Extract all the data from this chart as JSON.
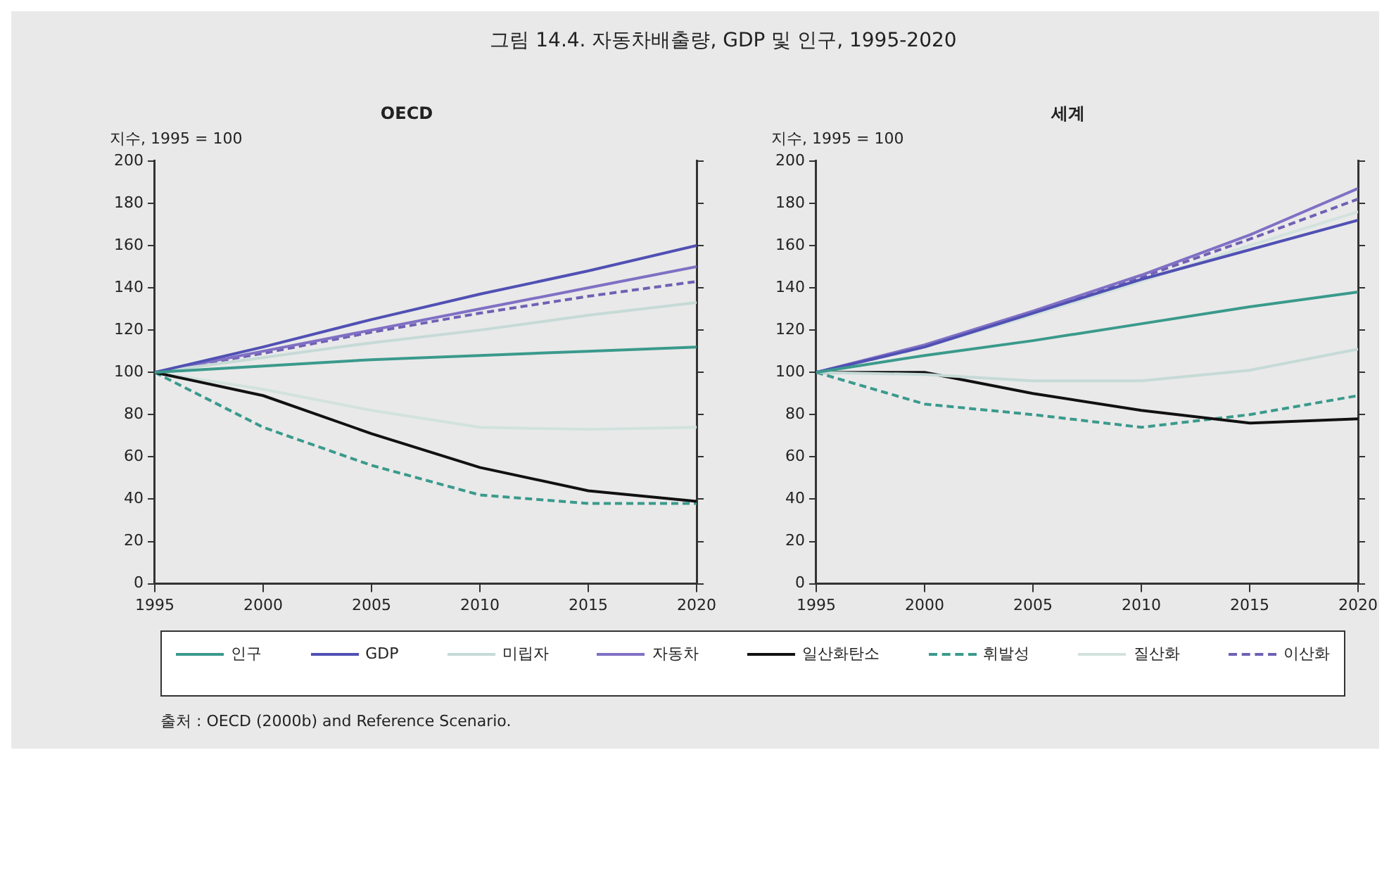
{
  "chart_data": [
    {
      "type": "line",
      "title": "그림 14.4. 자동차배출량, GDP 및 인구, 1995-2020",
      "subtitle": "OECD",
      "ylabel": "지수, 1995 = 100",
      "annotations": [
        "출처 : OECD (2000b) and Reference Scenario."
      ],
      "legend": "bottom",
      "grid": false,
      "marker": "none",
      "x": [
        1995,
        2000,
        2005,
        2010,
        2015,
        2020
      ],
      "xlim": [
        1995,
        2020
      ],
      "xticks": [
        1995,
        2000,
        2005,
        2010,
        2015,
        2020
      ],
      "ylim": [
        0,
        200
      ],
      "yticks": [
        0,
        20,
        40,
        60,
        80,
        100,
        120,
        140,
        160,
        180,
        200
      ],
      "series": [
        {
          "name": "인구",
          "color": "#3a9a8c",
          "line_style": "solid",
          "values": [
            100,
            103,
            106,
            108,
            110,
            112
          ]
        },
        {
          "name": "GDP",
          "color": "#5050b4",
          "line_style": "solid",
          "values": [
            100,
            112,
            125,
            137,
            148,
            160
          ]
        },
        {
          "name": "미립자",
          "color": "#c6dad6",
          "line_style": "solid",
          "values": [
            100,
            107,
            114,
            120,
            127,
            133
          ]
        },
        {
          "name": "자동차",
          "color": "#8070c4",
          "line_style": "solid",
          "values": [
            100,
            110,
            120,
            130,
            140,
            150
          ]
        },
        {
          "name": "일산화탄소",
          "color": "#111111",
          "line_style": "solid",
          "values": [
            100,
            89,
            71,
            55,
            44,
            39
          ]
        },
        {
          "name": "휘발성",
          "color": "#3a9a8c",
          "line_style": "dashed",
          "values": [
            100,
            74,
            56,
            42,
            38,
            38
          ]
        },
        {
          "name": "질산화",
          "color": "#d2e2de",
          "line_style": "solid",
          "values": [
            100,
            92,
            82,
            74,
            73,
            74
          ]
        },
        {
          "name": "이산화",
          "color": "#7060b4",
          "line_style": "dashed",
          "values": [
            100,
            109,
            119,
            128,
            136,
            143
          ]
        }
      ]
    },
    {
      "type": "line",
      "subtitle": "세계",
      "ylabel": "지수, 1995 = 100",
      "legend": "bottom",
      "grid": false,
      "marker": "none",
      "x": [
        1995,
        2000,
        2005,
        2010,
        2015,
        2020
      ],
      "xlim": [
        1995,
        2020
      ],
      "xticks": [
        1995,
        2000,
        2005,
        2010,
        2015,
        2020
      ],
      "ylim": [
        0,
        200
      ],
      "yticks": [
        0,
        20,
        40,
        60,
        80,
        100,
        120,
        140,
        160,
        180,
        200
      ],
      "series": [
        {
          "name": "인구",
          "color": "#3a9a8c",
          "line_style": "solid",
          "values": [
            100,
            108,
            115,
            123,
            131,
            138
          ]
        },
        {
          "name": "GDP",
          "color": "#5050b4",
          "line_style": "solid",
          "values": [
            100,
            112,
            128,
            144,
            158,
            172
          ]
        },
        {
          "name": "미립자",
          "color": "#c6dad6",
          "line_style": "solid",
          "values": [
            100,
            99,
            96,
            96,
            101,
            111
          ]
        },
        {
          "name": "자동차",
          "color": "#8070c4",
          "line_style": "solid",
          "values": [
            100,
            113,
            129,
            146,
            165,
            187
          ]
        },
        {
          "name": "일산화탄소",
          "color": "#111111",
          "line_style": "solid",
          "values": [
            100,
            100,
            90,
            82,
            76,
            78
          ]
        },
        {
          "name": "휘발성",
          "color": "#3a9a8c",
          "line_style": "dashed",
          "values": [
            100,
            85,
            80,
            74,
            80,
            89
          ]
        },
        {
          "name": "질산화",
          "color": "#d2e2de",
          "line_style": "solid",
          "values": [
            100,
            112,
            127,
            143,
            160,
            176
          ]
        },
        {
          "name": "이산화",
          "color": "#7060b4",
          "line_style": "dashed",
          "values": [
            100,
            112,
            128,
            145,
            163,
            182
          ]
        }
      ]
    }
  ]
}
